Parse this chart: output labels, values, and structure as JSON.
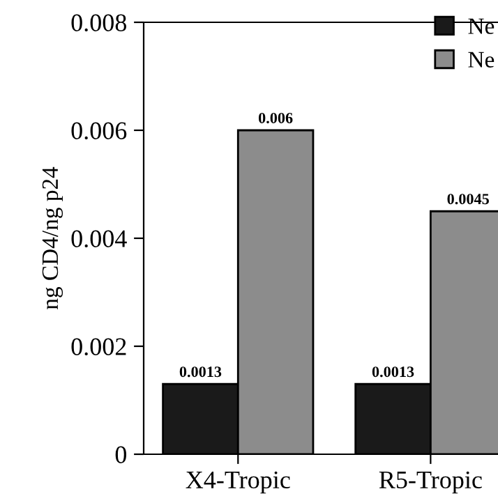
{
  "chart_data": {
    "type": "bar",
    "ylabel": "ng CD4/ng p24",
    "categories": [
      "X4-Tropic",
      "R5-Tropic"
    ],
    "series": [
      {
        "name": "Ne",
        "color": "#1a1a1a",
        "values": [
          0.0013,
          0.0013
        ]
      },
      {
        "name": "Ne",
        "color": "#8c8c8c",
        "values": [
          0.006,
          0.0045
        ]
      }
    ],
    "ylim": [
      0,
      0.008
    ],
    "yticks": [
      {
        "value": 0,
        "label": "0"
      },
      0.002,
      0.004,
      0.006,
      0.008
    ],
    "data_labels": true,
    "legend": "top right",
    "grid": false
  }
}
